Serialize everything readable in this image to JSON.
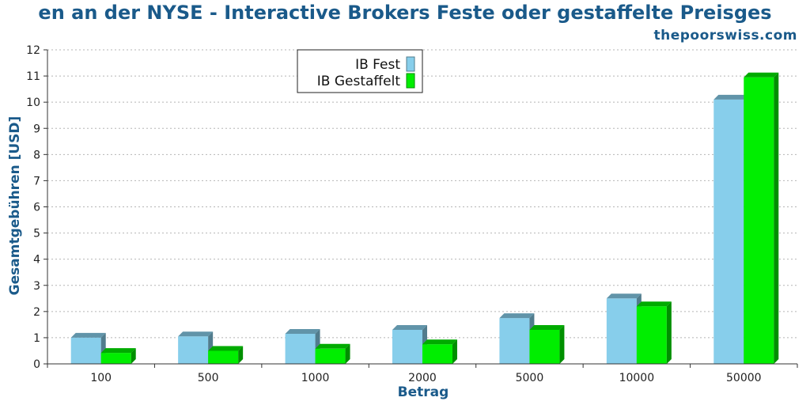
{
  "header": {
    "title": "en an der NYSE - Interactive Brokers Feste oder gestaffelte Preisges",
    "watermark": "thepoorswiss.com"
  },
  "colors": {
    "fest": "#87ceeb",
    "gestaffelt": "#00ee00",
    "text_accent": "#1a5a8a"
  },
  "chart_data": {
    "type": "bar",
    "title": "en an der NYSE - Interactive Brokers Feste oder gestaffelte Preisges",
    "xlabel": "Betrag",
    "ylabel": "Gesamtgebühren [USD]",
    "categories": [
      "100",
      "500",
      "1000",
      "2000",
      "5000",
      "10000",
      "50000"
    ],
    "ylim": [
      0,
      12
    ],
    "yticks": [
      0,
      1,
      2,
      3,
      4,
      5,
      6,
      7,
      8,
      9,
      10,
      11,
      12
    ],
    "grid": true,
    "legend_position": "top-center",
    "series": [
      {
        "name": "IB Fest",
        "color": "#87ceeb",
        "values": [
          1.0,
          1.05,
          1.15,
          1.3,
          1.75,
          2.5,
          10.1
        ]
      },
      {
        "name": "IB Gestaffelt",
        "color": "#00ee00",
        "values": [
          0.42,
          0.5,
          0.58,
          0.75,
          1.3,
          2.2,
          10.95
        ]
      }
    ]
  }
}
